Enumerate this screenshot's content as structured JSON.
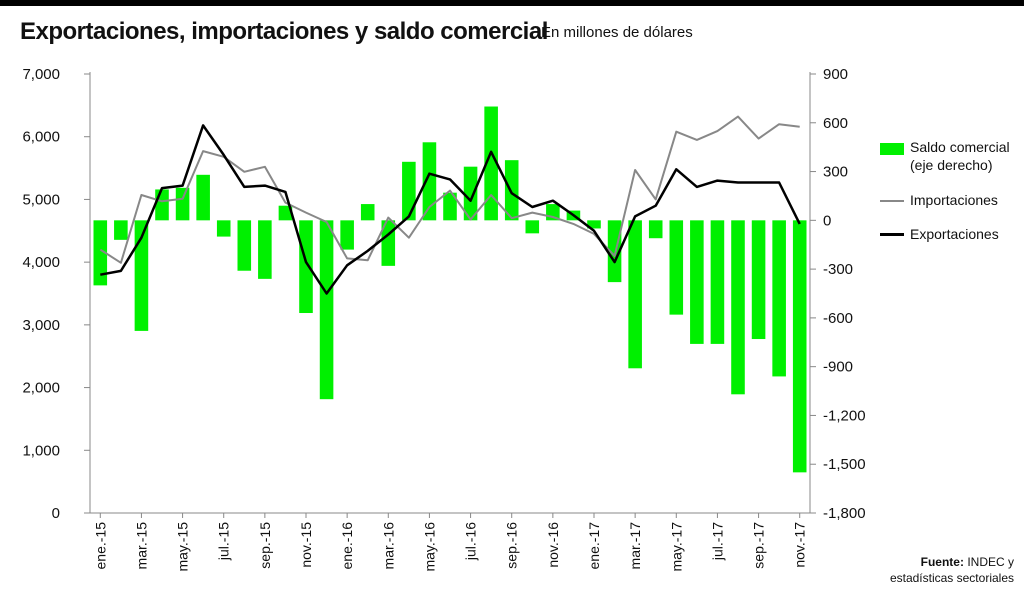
{
  "title": "Exportaciones, importaciones y saldo comercial",
  "subtitle": "En millones de dólares",
  "legend": {
    "saldo_line1": "Saldo comercial",
    "saldo_line2": "(eje derecho)",
    "importaciones": "Importaciones",
    "exportaciones": "Exportaciones"
  },
  "source": {
    "label": "Fuente:",
    "line1": "INDEC y",
    "line2": "estadísticas sectoriales"
  },
  "colors": {
    "saldo": "#00f000",
    "importaciones": "#888888",
    "exportaciones": "#000000",
    "axis": "#888888"
  },
  "chart_data": {
    "type": "bar+line",
    "x_tick_labels": [
      "ene.-15",
      "mar.-15",
      "may.-15",
      "jul.-15",
      "sep.-15",
      "nov.-15",
      "ene.-16",
      "mar.-16",
      "may.-16",
      "jul.-16",
      "sep.-16",
      "nov.-16",
      "ene.-17",
      "mar.-17",
      "may.-17",
      "jul.-17",
      "sep.-17",
      "nov.-17"
    ],
    "y_left": {
      "range": [
        0,
        7000
      ],
      "ticks": [
        "0",
        "1,000",
        "2,000",
        "3,000",
        "4,000",
        "5,000",
        "6,000",
        "7,000"
      ],
      "tick_values": [
        0,
        1000,
        2000,
        3000,
        4000,
        5000,
        6000,
        7000
      ]
    },
    "y_right": {
      "range": [
        -1800,
        900
      ],
      "ticks": [
        "-1,800",
        "-1,500",
        "-1,200",
        "-900",
        "-600",
        "-300",
        "0",
        "300",
        "600",
        "900"
      ],
      "tick_values": [
        -1800,
        -1500,
        -1200,
        -900,
        -600,
        -300,
        0,
        300,
        600,
        900
      ]
    },
    "categories": [
      "ene.-15",
      "feb.-15",
      "mar.-15",
      "abr.-15",
      "may.-15",
      "jun.-15",
      "jul.-15",
      "ago.-15",
      "sep.-15",
      "oct.-15",
      "nov.-15",
      "dic.-15",
      "ene.-16",
      "feb.-16",
      "mar.-16",
      "abr.-16",
      "may.-16",
      "jun.-16",
      "jul.-16",
      "ago.-16",
      "sep.-16",
      "oct.-16",
      "nov.-16",
      "dic.-16",
      "ene.-17",
      "feb.-17",
      "mar.-17",
      "abr.-17",
      "may.-17",
      "jun.-17",
      "jul.-17",
      "ago.-17",
      "sep.-17",
      "oct.-17",
      "nov.-17"
    ],
    "series": [
      {
        "name": "Saldo comercial (eje derecho)",
        "axis": "right",
        "type": "bar",
        "values": [
          -400,
          -120,
          -680,
          190,
          200,
          280,
          -100,
          -310,
          -360,
          90,
          -570,
          -1100,
          -180,
          100,
          -280,
          360,
          480,
          170,
          330,
          700,
          370,
          -80,
          100,
          60,
          -50,
          -380,
          -910,
          -110,
          -580,
          -760,
          -760,
          -1070,
          -730,
          -960,
          -1550
        ]
      },
      {
        "name": "Importaciones",
        "axis": "left",
        "type": "line",
        "values": [
          4200,
          3990,
          5070,
          4970,
          5010,
          5770,
          5680,
          5440,
          5520,
          4950,
          4790,
          4640,
          4060,
          4030,
          4710,
          4390,
          4880,
          5140,
          4680,
          5070,
          4700,
          4790,
          4720,
          4610,
          4450,
          4100,
          5470,
          5000,
          6080,
          5950,
          6090,
          6320,
          5970,
          6200,
          6160
        ]
      },
      {
        "name": "Exportaciones",
        "axis": "left",
        "type": "line",
        "values": [
          3800,
          3860,
          4390,
          5180,
          5220,
          6180,
          5710,
          5200,
          5220,
          5120,
          4000,
          3500,
          3950,
          4180,
          4440,
          4730,
          5410,
          5320,
          4980,
          5760,
          5100,
          4880,
          4980,
          4750,
          4500,
          4000,
          4730,
          4900,
          5480,
          5200,
          5300,
          5270,
          5270,
          5270,
          4610
        ]
      }
    ]
  }
}
